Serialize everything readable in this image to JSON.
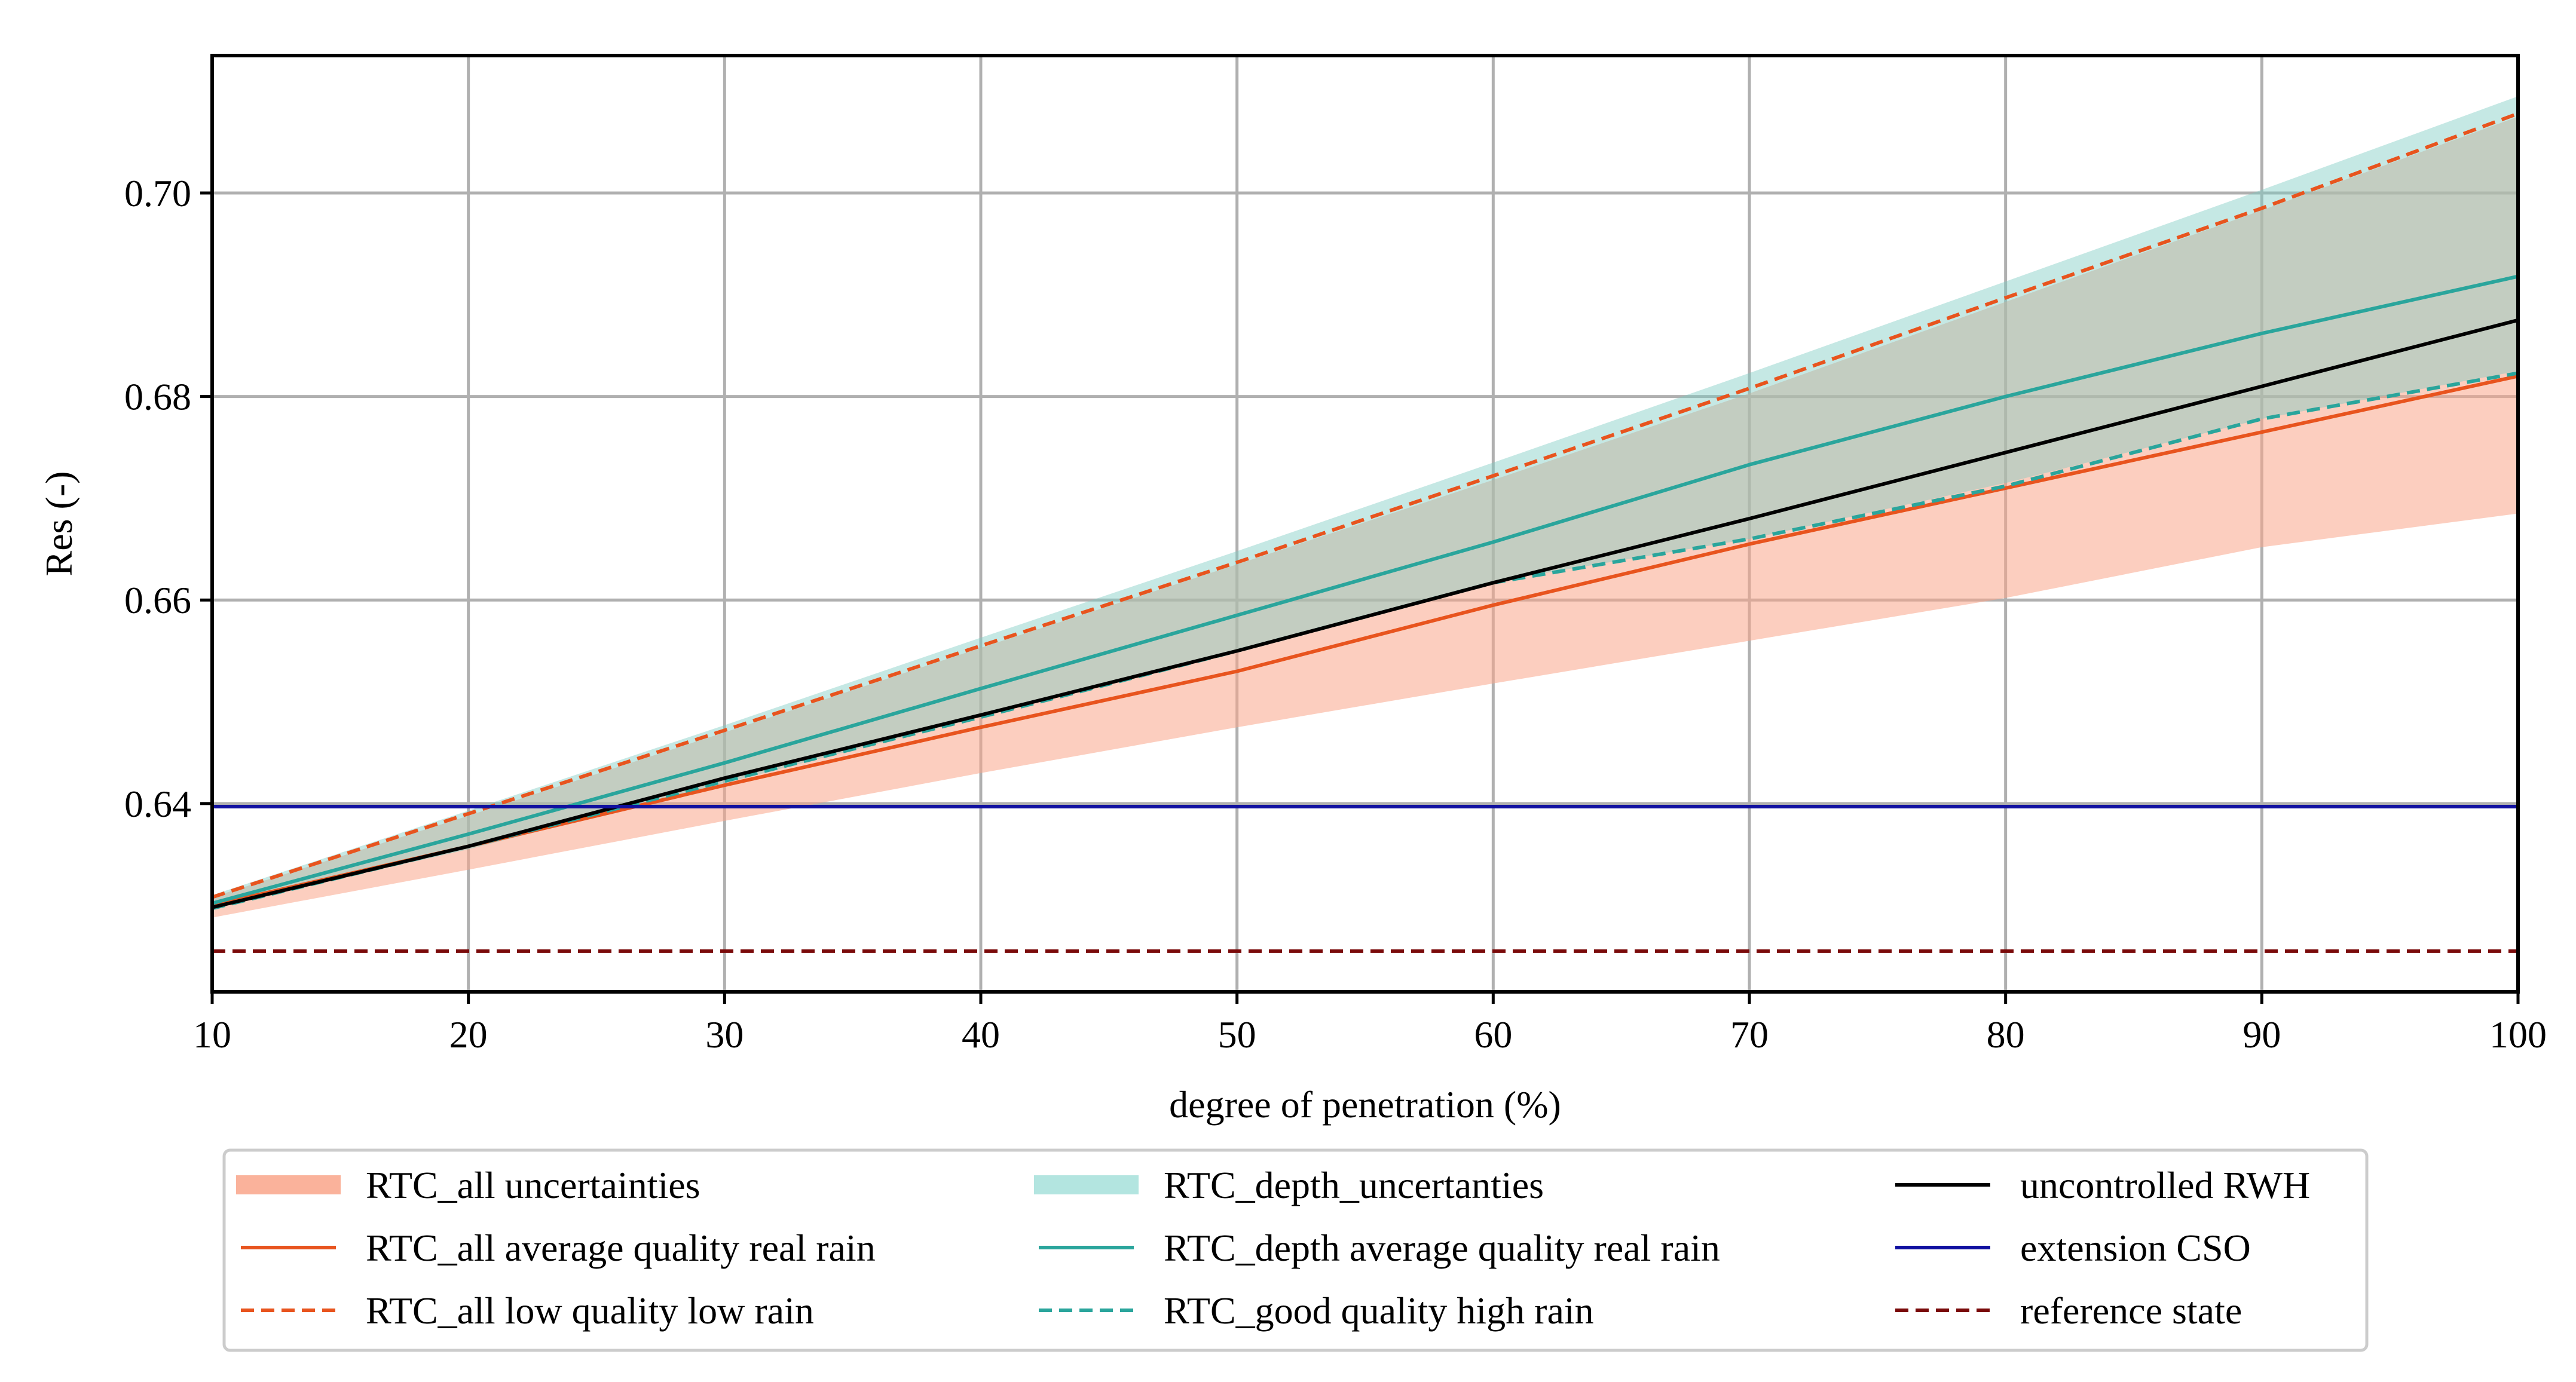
{
  "chart_data": {
    "type": "line",
    "title": "",
    "xlabel": "degree of penetration (%)",
    "ylabel": "Res (-)",
    "xlim": [
      10,
      100
    ],
    "ylim": [
      0.6215,
      0.7135
    ],
    "xticks": [
      10,
      20,
      30,
      40,
      50,
      60,
      70,
      80,
      90,
      100
    ],
    "xtick_labels": [
      "10",
      "20",
      "30",
      "40",
      "50",
      "60",
      "70",
      "80",
      "90",
      "100"
    ],
    "yticks": [
      0.64,
      0.66,
      0.68,
      0.7
    ],
    "ytick_labels": [
      "0.64",
      "0.66",
      "0.68",
      "0.70"
    ],
    "grid": true,
    "legend_position": "bottom",
    "x": [
      10,
      20,
      30,
      40,
      50,
      60,
      70,
      80,
      90,
      100
    ],
    "bands": [
      {
        "name": "RTC_all uncertainties",
        "color": "#f9a58a",
        "opacity": 0.55,
        "lower": [
          0.6288,
          0.6335,
          0.6383,
          0.643,
          0.6475,
          0.6518,
          0.656,
          0.6602,
          0.6652,
          0.6685
        ],
        "upper": [
          0.6308,
          0.6388,
          0.647,
          0.6553,
          0.6635,
          0.6718,
          0.6803,
          0.6893,
          0.6983,
          0.7075
        ]
      },
      {
        "name": "RTC_depth_uncertanties",
        "color": "#7fcdc4",
        "opacity": 0.45,
        "lower": [
          0.6298,
          0.6355,
          0.642,
          0.6485,
          0.655,
          0.6618,
          0.666,
          0.6715,
          0.6778,
          0.6825
        ],
        "upper": [
          0.631,
          0.6393,
          0.6477,
          0.6563,
          0.6648,
          0.6735,
          0.6823,
          0.6913,
          0.7003,
          0.7095
        ]
      }
    ],
    "series": [
      {
        "name": "RTC_all average quality real rain",
        "color": "#e8541e",
        "dash": "solid",
        "values": [
          0.63,
          0.6358,
          0.6418,
          0.6475,
          0.653,
          0.6595,
          0.6655,
          0.671,
          0.6765,
          0.682
        ]
      },
      {
        "name": "RTC_all low quality low rain",
        "color": "#e8541e",
        "dash": "dashed",
        "values": [
          0.6308,
          0.639,
          0.6472,
          0.6555,
          0.6637,
          0.6722,
          0.6808,
          0.6897,
          0.6985,
          0.7078
        ]
      },
      {
        "name": "RTC_depth average quality real rain",
        "color": "#2aa59c",
        "dash": "solid",
        "values": [
          0.6302,
          0.637,
          0.644,
          0.6513,
          0.6585,
          0.6657,
          0.6733,
          0.68,
          0.6862,
          0.6918
        ]
      },
      {
        "name": "RTC_good quality high rain",
        "color": "#2aa59c",
        "dash": "dashed",
        "values": [
          0.6297,
          0.6358,
          0.6422,
          0.6485,
          0.655,
          0.6617,
          0.666,
          0.6712,
          0.6778,
          0.6823
        ]
      },
      {
        "name": "uncontrolled RWH",
        "color": "#000000",
        "dash": "solid",
        "values": [
          0.6298,
          0.6358,
          0.6425,
          0.6487,
          0.655,
          0.6617,
          0.668,
          0.6745,
          0.681,
          0.6875
        ]
      },
      {
        "name": "extension CSO",
        "color": "#1010a0",
        "dash": "solid",
        "values": [
          0.6397,
          0.6397,
          0.6397,
          0.6397,
          0.6397,
          0.6397,
          0.6397,
          0.6397,
          0.6397,
          0.6397
        ]
      },
      {
        "name": "reference state",
        "color": "#7a0a0a",
        "dash": "dashed",
        "values": [
          0.6255,
          0.6255,
          0.6255,
          0.6255,
          0.6255,
          0.6255,
          0.6255,
          0.6255,
          0.6255,
          0.6255
        ]
      }
    ],
    "legend": [
      {
        "label": "RTC_all uncertainties",
        "kind": "band",
        "color": "#f9a58a",
        "dash": "solid"
      },
      {
        "label": "RTC_depth_uncertanties",
        "kind": "band",
        "color": "#a6e0da",
        "dash": "solid"
      },
      {
        "label": "uncontrolled RWH",
        "kind": "line",
        "color": "#000000",
        "dash": "solid"
      },
      {
        "label": "RTC_all average quality real rain",
        "kind": "line",
        "color": "#e8541e",
        "dash": "solid"
      },
      {
        "label": "RTC_depth average quality real rain",
        "kind": "line",
        "color": "#2aa59c",
        "dash": "solid"
      },
      {
        "label": "extension CSO",
        "kind": "line",
        "color": "#1010a0",
        "dash": "solid"
      },
      {
        "label": "RTC_all low quality low rain",
        "kind": "line",
        "color": "#e8541e",
        "dash": "dashed"
      },
      {
        "label": "RTC_good quality high rain",
        "kind": "line",
        "color": "#2aa59c",
        "dash": "dashed"
      },
      {
        "label": "reference state",
        "kind": "line",
        "color": "#7a0a0a",
        "dash": "dashed"
      }
    ]
  }
}
